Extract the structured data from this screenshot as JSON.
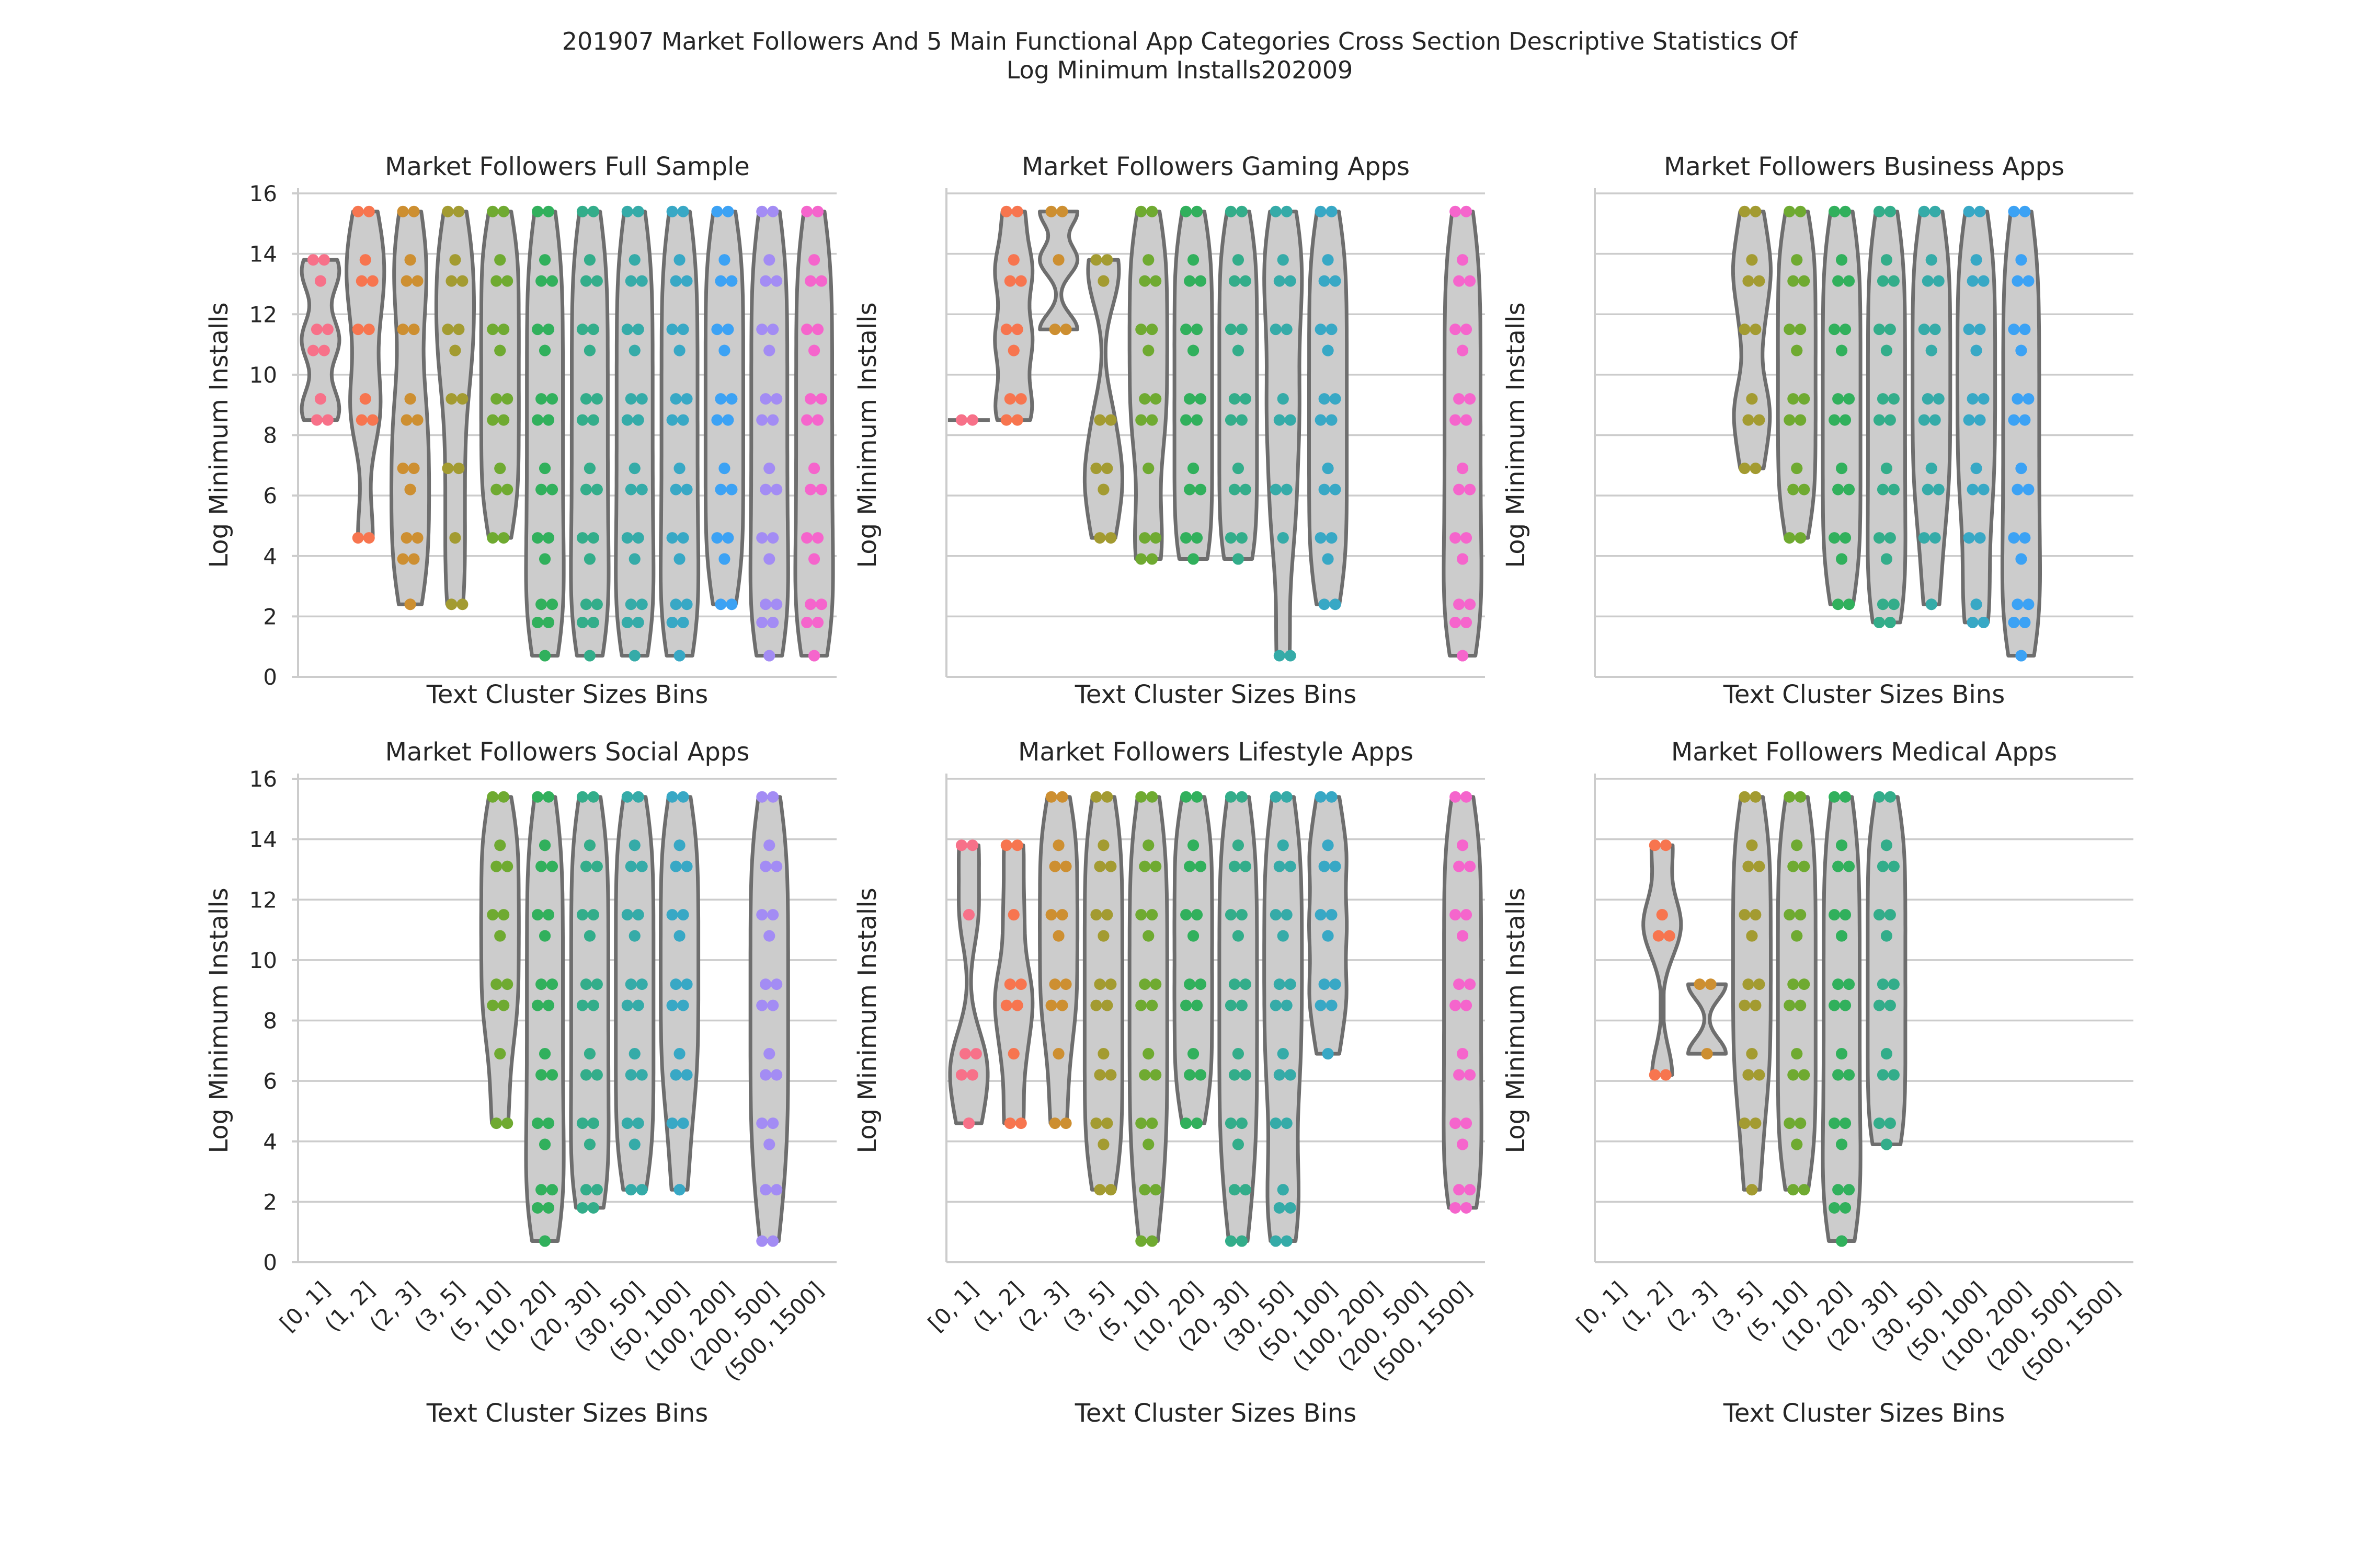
{
  "chart_data": {
    "type": "violin",
    "suptitle_lines": [
      "201907 Market Followers And 5 Main Functional App Categories Cross Section Descriptive Statistics Of",
      "Log Minimum Installs202009"
    ],
    "xlabel": "Text Cluster Sizes Bins",
    "ylabel": "Log Minimum Installs",
    "ylim": [
      0,
      16
    ],
    "yticks": [
      0,
      2,
      4,
      6,
      8,
      10,
      12,
      14,
      16
    ],
    "grid": "horizontal",
    "categories": [
      "[0, 1]",
      "(1, 2]",
      "(2, 3]",
      "(3, 5]",
      "(5, 10]",
      "(10, 20]",
      "(20, 30]",
      "(30, 50]",
      "(50, 100]",
      "(100, 200]",
      "(200, 500]",
      "(500, 1500]"
    ],
    "colors": [
      "#f77189",
      "#f7754f",
      "#cd8f31",
      "#a39b31",
      "#6faa31",
      "#31b05c",
      "#33ad8a",
      "#35aba8",
      "#38a8c5",
      "#3ca2f4",
      "#a38cf4",
      "#f565cc"
    ],
    "panels": [
      {
        "title": "Market Followers Full Sample",
        "series": [
          {
            "category": "[0, 1]",
            "min": 8.5,
            "max": 13.8,
            "points": [
              13.8,
              13.1,
              11.5,
              10.8,
              9.2,
              8.5
            ]
          },
          {
            "category": "(1, 2]",
            "min": 4.6,
            "max": 15.4,
            "points": [
              15.4,
              13.8,
              13.1,
              11.5,
              9.2,
              8.5,
              4.6
            ]
          },
          {
            "category": "(2, 3]",
            "min": 2.4,
            "max": 15.4,
            "points": [
              15.4,
              13.8,
              13.1,
              11.5,
              9.2,
              8.5,
              6.9,
              6.2,
              4.6,
              3.9,
              2.4
            ]
          },
          {
            "category": "(3, 5]",
            "min": 2.4,
            "max": 15.4,
            "points": [
              15.4,
              13.8,
              13.1,
              11.5,
              10.8,
              9.2,
              6.9,
              4.6,
              2.4
            ]
          },
          {
            "category": "(5, 10]",
            "min": 4.6,
            "max": 15.4,
            "points": [
              15.4,
              13.8,
              13.1,
              11.5,
              10.8,
              9.2,
              8.5,
              6.9,
              6.2,
              4.6
            ]
          },
          {
            "category": "(10, 20]",
            "min": 0.7,
            "max": 15.4,
            "points": [
              15.4,
              13.8,
              13.1,
              11.5,
              10.8,
              9.2,
              8.5,
              6.9,
              6.2,
              4.6,
              3.9,
              2.4,
              1.8,
              0.7
            ]
          },
          {
            "category": "(20, 30]",
            "min": 0.7,
            "max": 15.4,
            "points": [
              15.4,
              13.8,
              13.1,
              11.5,
              10.8,
              9.2,
              8.5,
              6.9,
              6.2,
              4.6,
              3.9,
              2.4,
              1.8,
              0.7
            ]
          },
          {
            "category": "(30, 50]",
            "min": 0.7,
            "max": 15.4,
            "points": [
              15.4,
              13.8,
              13.1,
              11.5,
              10.8,
              9.2,
              8.5,
              6.9,
              6.2,
              4.6,
              3.9,
              2.4,
              1.8,
              0.7
            ]
          },
          {
            "category": "(50, 100]",
            "min": 0.7,
            "max": 15.4,
            "points": [
              15.4,
              13.8,
              13.1,
              11.5,
              10.8,
              9.2,
              8.5,
              6.9,
              6.2,
              4.6,
              3.9,
              2.4,
              1.8,
              0.7
            ]
          },
          {
            "category": "(100, 200]",
            "min": 2.4,
            "max": 15.4,
            "points": [
              15.4,
              13.8,
              13.1,
              11.5,
              10.8,
              9.2,
              8.5,
              6.9,
              6.2,
              4.6,
              3.9,
              2.4
            ]
          },
          {
            "category": "(200, 500]",
            "min": 0.7,
            "max": 15.4,
            "points": [
              15.4,
              13.8,
              13.1,
              11.5,
              10.8,
              9.2,
              8.5,
              6.9,
              6.2,
              4.6,
              3.9,
              2.4,
              1.8,
              0.7
            ]
          },
          {
            "category": "(500, 1500]",
            "min": 0.7,
            "max": 15.4,
            "points": [
              15.4,
              13.8,
              13.1,
              11.5,
              10.8,
              9.2,
              8.5,
              6.9,
              6.2,
              4.6,
              3.9,
              2.4,
              1.8,
              0.7
            ]
          }
        ]
      },
      {
        "title": "Market Followers Gaming Apps",
        "series": [
          {
            "category": "[0, 1]",
            "min": 8.5,
            "max": 8.5,
            "points": [
              8.5
            ]
          },
          {
            "category": "(1, 2]",
            "min": 8.5,
            "max": 15.4,
            "points": [
              15.4,
              13.8,
              13.1,
              11.5,
              10.8,
              9.2,
              8.5
            ]
          },
          {
            "category": "(2, 3]",
            "min": 11.5,
            "max": 15.4,
            "points": [
              15.4,
              13.8,
              11.5
            ]
          },
          {
            "category": "(3, 5]",
            "min": 4.6,
            "max": 13.8,
            "points": [
              13.8,
              13.1,
              8.5,
              6.9,
              6.2,
              4.6
            ]
          },
          {
            "category": "(5, 10]",
            "min": 3.9,
            "max": 15.4,
            "points": [
              15.4,
              13.8,
              13.1,
              11.5,
              10.8,
              9.2,
              8.5,
              6.9,
              4.6,
              3.9
            ]
          },
          {
            "category": "(10, 20]",
            "min": 3.9,
            "max": 15.4,
            "points": [
              15.4,
              13.8,
              13.1,
              11.5,
              10.8,
              9.2,
              8.5,
              6.9,
              6.2,
              4.6,
              3.9
            ]
          },
          {
            "category": "(20, 30]",
            "min": 3.9,
            "max": 15.4,
            "points": [
              15.4,
              13.8,
              13.1,
              11.5,
              10.8,
              9.2,
              8.5,
              6.9,
              6.2,
              4.6,
              3.9
            ]
          },
          {
            "category": "(30, 50]",
            "min": 0.7,
            "max": 15.4,
            "points": [
              15.4,
              13.8,
              13.1,
              11.5,
              9.2,
              8.5,
              6.2,
              4.6,
              0.7
            ]
          },
          {
            "category": "(50, 100]",
            "min": 2.4,
            "max": 15.4,
            "points": [
              15.4,
              13.8,
              13.1,
              11.5,
              10.8,
              9.2,
              8.5,
              6.9,
              6.2,
              4.6,
              3.9,
              2.4
            ]
          },
          {
            "category": "(500, 1500]",
            "min": 0.7,
            "max": 15.4,
            "points": [
              15.4,
              13.8,
              13.1,
              11.5,
              10.8,
              9.2,
              8.5,
              6.9,
              6.2,
              4.6,
              3.9,
              2.4,
              1.8,
              0.7
            ]
          }
        ]
      },
      {
        "title": "Market Followers Business Apps",
        "series": [
          {
            "category": "(3, 5]",
            "min": 6.9,
            "max": 15.4,
            "points": [
              15.4,
              13.8,
              13.1,
              11.5,
              9.2,
              8.5,
              6.9
            ]
          },
          {
            "category": "(5, 10]",
            "min": 4.6,
            "max": 15.4,
            "points": [
              15.4,
              13.8,
              13.1,
              11.5,
              10.8,
              9.2,
              8.5,
              6.9,
              6.2,
              4.6
            ]
          },
          {
            "category": "(10, 20]",
            "min": 2.4,
            "max": 15.4,
            "points": [
              15.4,
              13.8,
              13.1,
              11.5,
              10.8,
              9.2,
              8.5,
              6.9,
              6.2,
              4.6,
              3.9,
              2.4
            ]
          },
          {
            "category": "(20, 30]",
            "min": 1.8,
            "max": 15.4,
            "points": [
              15.4,
              13.8,
              13.1,
              11.5,
              10.8,
              9.2,
              8.5,
              6.9,
              6.2,
              4.6,
              3.9,
              2.4,
              1.8
            ]
          },
          {
            "category": "(30, 50]",
            "min": 2.4,
            "max": 15.4,
            "points": [
              15.4,
              13.8,
              13.1,
              11.5,
              10.8,
              9.2,
              8.5,
              6.9,
              6.2,
              4.6,
              2.4
            ]
          },
          {
            "category": "(50, 100]",
            "min": 1.8,
            "max": 15.4,
            "points": [
              15.4,
              13.8,
              13.1,
              11.5,
              10.8,
              9.2,
              8.5,
              6.9,
              6.2,
              4.6,
              2.4,
              1.8
            ]
          },
          {
            "category": "(100, 200]",
            "min": 0.7,
            "max": 15.4,
            "points": [
              15.4,
              13.8,
              13.1,
              11.5,
              10.8,
              9.2,
              8.5,
              6.9,
              6.2,
              4.6,
              3.9,
              2.4,
              1.8,
              0.7
            ]
          }
        ]
      },
      {
        "title": "Market Followers Social Apps",
        "series": [
          {
            "category": "(5, 10]",
            "min": 4.6,
            "max": 15.4,
            "points": [
              15.4,
              13.8,
              13.1,
              11.5,
              10.8,
              9.2,
              8.5,
              6.9,
              4.6
            ]
          },
          {
            "category": "(10, 20]",
            "min": 0.7,
            "max": 15.4,
            "points": [
              15.4,
              13.8,
              13.1,
              11.5,
              10.8,
              9.2,
              8.5,
              6.9,
              6.2,
              4.6,
              3.9,
              2.4,
              1.8,
              0.7
            ]
          },
          {
            "category": "(20, 30]",
            "min": 1.8,
            "max": 15.4,
            "points": [
              15.4,
              13.8,
              13.1,
              11.5,
              10.8,
              9.2,
              8.5,
              6.9,
              6.2,
              4.6,
              3.9,
              2.4,
              1.8
            ]
          },
          {
            "category": "(30, 50]",
            "min": 2.4,
            "max": 15.4,
            "points": [
              15.4,
              13.8,
              13.1,
              11.5,
              10.8,
              9.2,
              8.5,
              6.9,
              6.2,
              4.6,
              3.9,
              2.4
            ]
          },
          {
            "category": "(50, 100]",
            "min": 2.4,
            "max": 15.4,
            "points": [
              15.4,
              13.8,
              13.1,
              11.5,
              10.8,
              9.2,
              8.5,
              6.9,
              6.2,
              4.6,
              2.4
            ]
          },
          {
            "category": "(200, 500]",
            "min": 0.7,
            "max": 15.4,
            "points": [
              15.4,
              13.8,
              13.1,
              11.5,
              10.8,
              9.2,
              8.5,
              6.9,
              6.2,
              4.6,
              3.9,
              2.4,
              0.7
            ]
          }
        ]
      },
      {
        "title": "Market Followers Lifestyle Apps",
        "series": [
          {
            "category": "[0, 1]",
            "min": 4.6,
            "max": 13.8,
            "points": [
              13.8,
              11.5,
              6.9,
              6.2,
              4.6
            ]
          },
          {
            "category": "(1, 2]",
            "min": 4.6,
            "max": 13.8,
            "points": [
              13.8,
              11.5,
              9.2,
              8.5,
              6.9,
              4.6
            ]
          },
          {
            "category": "(2, 3]",
            "min": 4.6,
            "max": 15.4,
            "points": [
              15.4,
              13.8,
              13.1,
              11.5,
              10.8,
              9.2,
              8.5,
              6.9,
              4.6
            ]
          },
          {
            "category": "(3, 5]",
            "min": 2.4,
            "max": 15.4,
            "points": [
              15.4,
              13.8,
              13.1,
              11.5,
              10.8,
              9.2,
              8.5,
              6.9,
              6.2,
              4.6,
              3.9,
              2.4
            ]
          },
          {
            "category": "(5, 10]",
            "min": 0.7,
            "max": 15.4,
            "points": [
              15.4,
              13.8,
              13.1,
              11.5,
              10.8,
              9.2,
              8.5,
              6.9,
              6.2,
              4.6,
              3.9,
              2.4,
              0.7
            ]
          },
          {
            "category": "(10, 20]",
            "min": 4.6,
            "max": 15.4,
            "points": [
              15.4,
              13.8,
              13.1,
              11.5,
              10.8,
              9.2,
              8.5,
              6.9,
              6.2,
              4.6
            ]
          },
          {
            "category": "(20, 30]",
            "min": 0.7,
            "max": 15.4,
            "points": [
              15.4,
              13.8,
              13.1,
              11.5,
              10.8,
              9.2,
              8.5,
              6.9,
              6.2,
              4.6,
              3.9,
              2.4,
              0.7
            ]
          },
          {
            "category": "(30, 50]",
            "min": 0.7,
            "max": 15.4,
            "points": [
              15.4,
              13.8,
              13.1,
              11.5,
              10.8,
              9.2,
              8.5,
              6.9,
              6.2,
              4.6,
              2.4,
              1.8,
              0.7
            ]
          },
          {
            "category": "(50, 100]",
            "min": 6.9,
            "max": 15.4,
            "points": [
              15.4,
              13.8,
              13.1,
              11.5,
              10.8,
              9.2,
              8.5,
              6.9
            ]
          },
          {
            "category": "(500, 1500]",
            "min": 1.8,
            "max": 15.4,
            "points": [
              15.4,
              13.8,
              13.1,
              11.5,
              10.8,
              9.2,
              8.5,
              6.9,
              6.2,
              4.6,
              3.9,
              2.4,
              1.8
            ]
          }
        ]
      },
      {
        "title": "Market Followers Medical Apps",
        "series": [
          {
            "category": "(1, 2]",
            "min": 6.2,
            "max": 13.8,
            "points": [
              13.8,
              11.5,
              10.8,
              6.2
            ]
          },
          {
            "category": "(2, 3]",
            "min": 6.9,
            "max": 9.2,
            "points": [
              9.2,
              6.9
            ]
          },
          {
            "category": "(3, 5]",
            "min": 2.4,
            "max": 15.4,
            "points": [
              15.4,
              13.8,
              13.1,
              11.5,
              10.8,
              9.2,
              8.5,
              6.9,
              6.2,
              4.6,
              2.4
            ]
          },
          {
            "category": "(5, 10]",
            "min": 2.4,
            "max": 15.4,
            "points": [
              15.4,
              13.8,
              13.1,
              11.5,
              10.8,
              9.2,
              8.5,
              6.9,
              6.2,
              4.6,
              3.9,
              2.4
            ]
          },
          {
            "category": "(10, 20]",
            "min": 0.7,
            "max": 15.4,
            "points": [
              15.4,
              13.8,
              13.1,
              11.5,
              10.8,
              9.2,
              8.5,
              6.9,
              6.2,
              4.6,
              3.9,
              2.4,
              1.8,
              0.7
            ]
          },
          {
            "category": "(20, 30]",
            "min": 3.9,
            "max": 15.4,
            "points": [
              15.4,
              13.8,
              13.1,
              11.5,
              10.8,
              9.2,
              8.5,
              6.9,
              6.2,
              4.6,
              3.9
            ]
          }
        ]
      }
    ]
  }
}
